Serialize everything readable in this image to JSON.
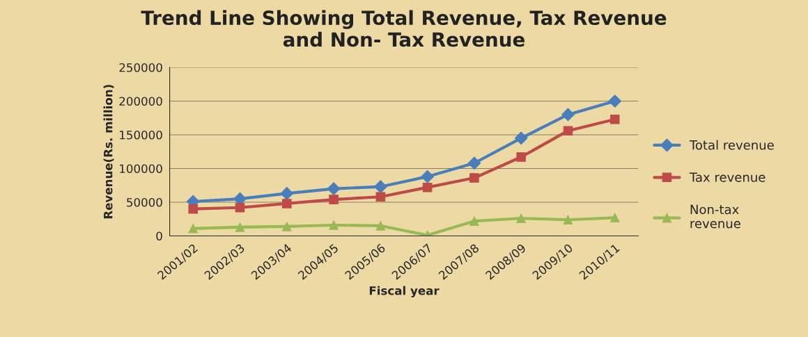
{
  "chart_data": {
    "type": "line",
    "title": "Trend Line Showing Total Revenue, Tax Revenue\nand Non- Tax Revenue",
    "xlabel": "Fiscal year",
    "ylabel": "Revenue(Rs. million)",
    "categories": [
      "2001/02",
      "2002/03",
      "2003/04",
      "2004/05",
      "2005/06",
      "2006/07",
      "2007/08",
      "2008/09",
      "2009/10",
      "2010/11"
    ],
    "series": [
      {
        "name": "Total revenue",
        "color": "#4a7ebb",
        "marker": "diamond",
        "values": [
          51000,
          55000,
          63000,
          70000,
          73000,
          88000,
          108000,
          145000,
          180000,
          200000
        ]
      },
      {
        "name": "Tax revenue",
        "color": "#be4b48",
        "marker": "square",
        "values": [
          40000,
          42000,
          48000,
          54000,
          58000,
          72000,
          86000,
          117000,
          156000,
          173000
        ]
      },
      {
        "name": "Non-tax\nrevenue",
        "color": "#98b954",
        "marker": "triangle",
        "values": [
          11000,
          13000,
          14000,
          16000,
          15000,
          1000,
          22000,
          26000,
          24000,
          27000
        ]
      }
    ],
    "ylim": [
      0,
      250000
    ],
    "yticks": [
      0,
      50000,
      100000,
      150000,
      200000,
      250000
    ],
    "grid": "y",
    "legend": "right"
  }
}
